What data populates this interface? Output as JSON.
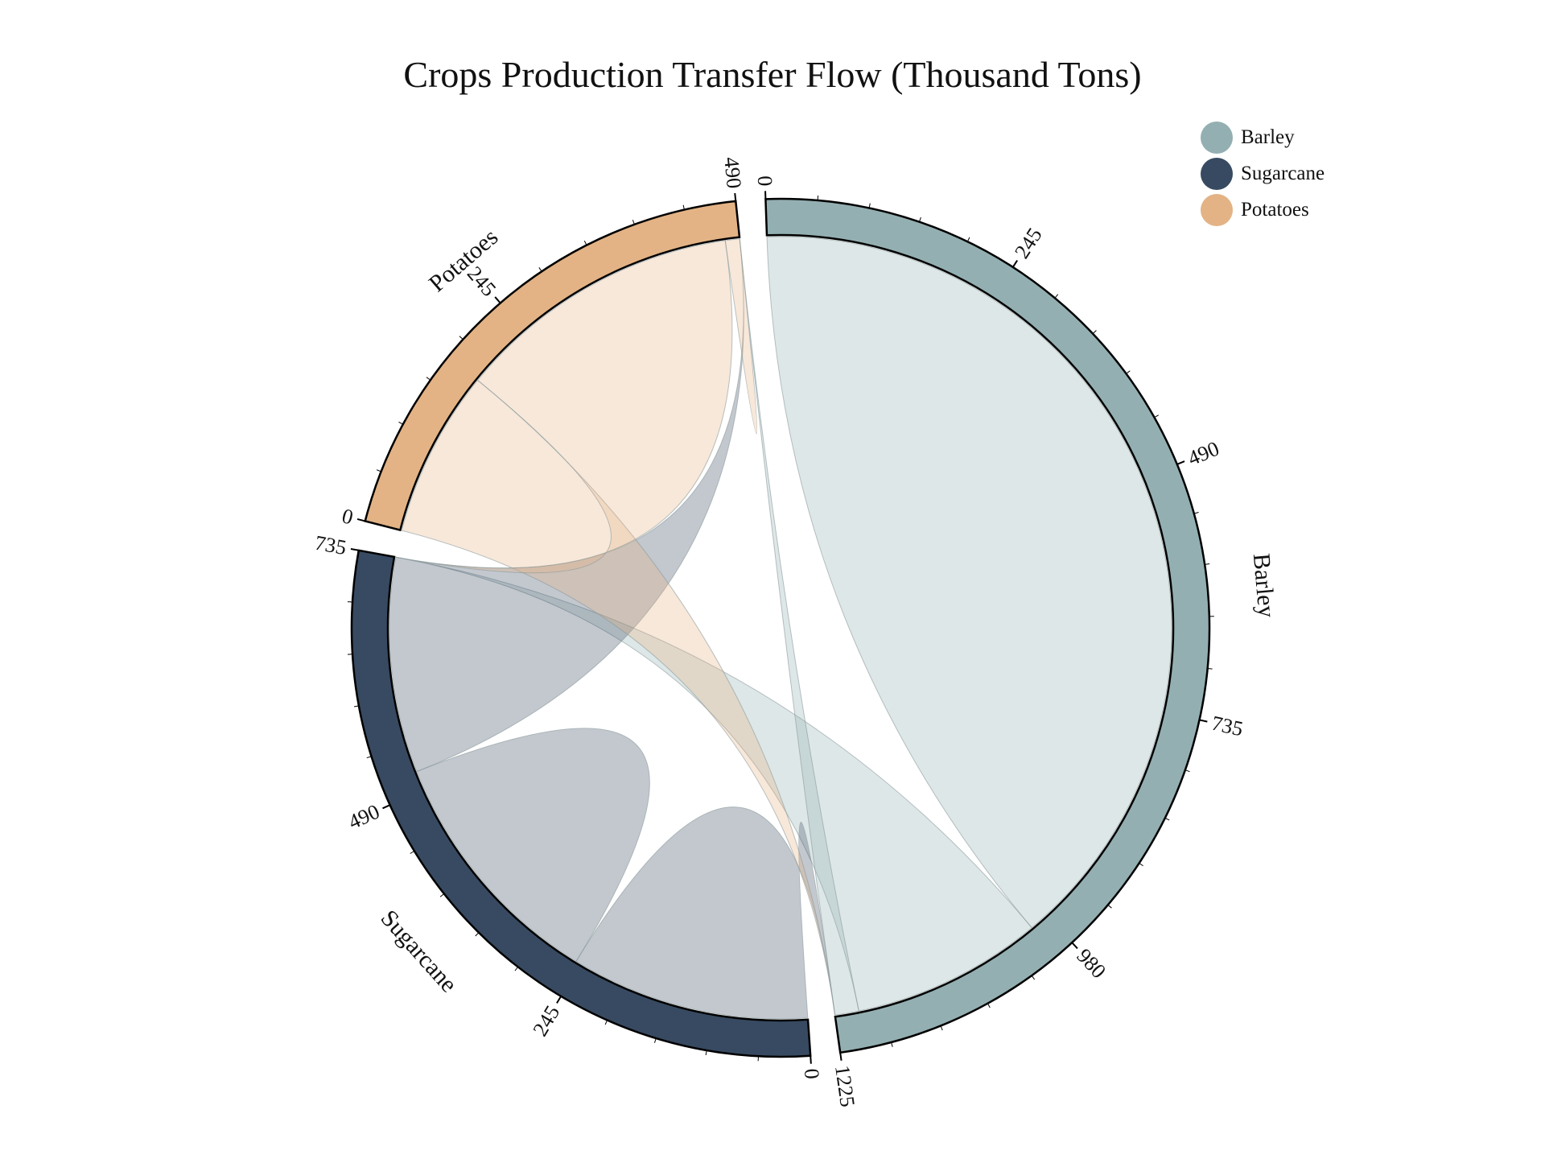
{
  "chart_data": {
    "type": "chord",
    "title": "Crops Production Transfer Flow (Thousand Tons)",
    "groups": [
      {
        "name": "Barley",
        "total": 1225,
        "color": "#93afb1",
        "ticks": [
          "0",
          "245",
          "490",
          "735",
          "980",
          "1225"
        ]
      },
      {
        "name": "Sugarcane",
        "total": 735,
        "color": "#374a61",
        "ticks": [
          "0",
          "245",
          "490",
          "735"
        ]
      },
      {
        "name": "Potatoes",
        "total": 490,
        "color": "#e3b385",
        "ticks": [
          "0",
          "245",
          "490"
        ]
      }
    ],
    "flows": [
      {
        "source": "Barley",
        "target": "Barley",
        "value": 1000
      },
      {
        "source": "Barley",
        "target": "Sugarcane",
        "value": 200
      },
      {
        "source": "Barley",
        "target": "Potatoes",
        "value": 25
      },
      {
        "source": "Sugarcane",
        "target": "Barley",
        "value": 250
      },
      {
        "source": "Sugarcane",
        "target": "Sugarcane",
        "value": 260
      },
      {
        "source": "Sugarcane",
        "target": "Potatoes",
        "value": 225
      },
      {
        "source": "Potatoes",
        "target": "Barley",
        "value": 175
      },
      {
        "source": "Potatoes",
        "target": "Sugarcane",
        "value": 300
      },
      {
        "source": "Potatoes",
        "target": "Potatoes",
        "value": 15
      }
    ],
    "legend": {
      "position": "top-right",
      "items": [
        "Barley",
        "Sugarcane",
        "Potatoes"
      ]
    }
  }
}
